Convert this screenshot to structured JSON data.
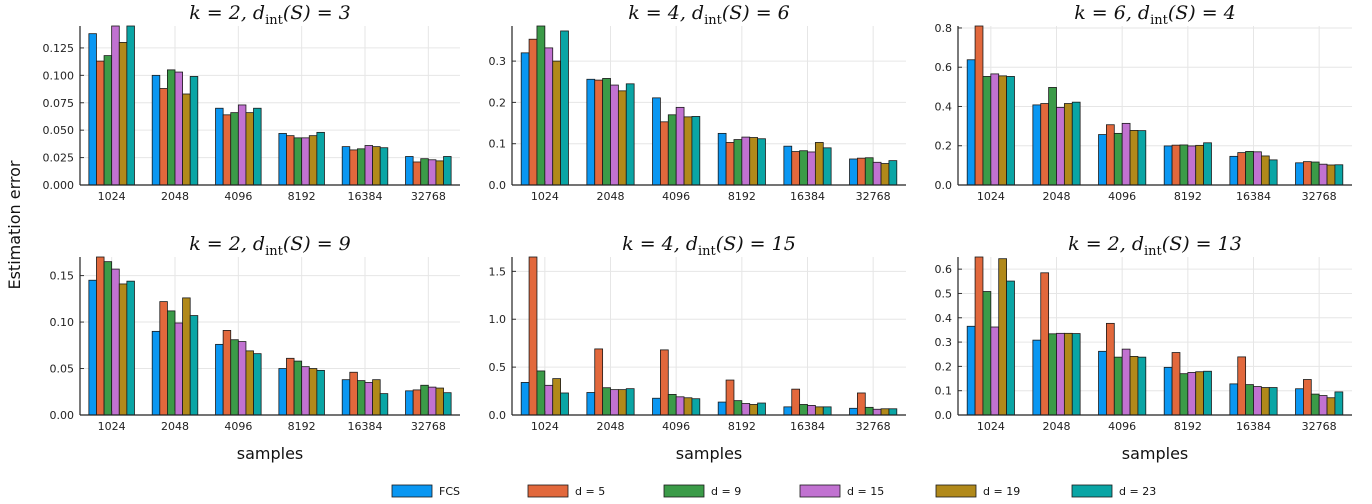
{
  "chart_data": {
    "type": "bar",
    "ylabel": "Estimation error",
    "xlabel": "samples",
    "series_names": [
      "FCS",
      "d = 5",
      "d = 9",
      "d = 15",
      "d = 19",
      "d = 23"
    ],
    "colors": [
      "#0a97f2",
      "#e2683c",
      "#3b9b48",
      "#c172d1",
      "#b1891a",
      "#0aa5a5"
    ],
    "grid": true,
    "legend_position": "bottom",
    "panels": [
      {
        "title": "k = 2, d_int(S) = 3",
        "categories": [
          "1024",
          "2048",
          "4096",
          "8192",
          "16384",
          "32768"
        ],
        "ylim": [
          0,
          0.145
        ],
        "yticks": [
          0.0,
          0.025,
          0.05,
          0.075,
          0.1,
          0.125
        ],
        "ytick_labels": [
          "0.000",
          "0.025",
          "0.050",
          "0.075",
          "0.100",
          "0.125"
        ],
        "values": [
          [
            0.138,
            0.113,
            0.118,
            0.146,
            0.13,
            0.146
          ],
          [
            0.1,
            0.088,
            0.105,
            0.103,
            0.083,
            0.099
          ],
          [
            0.07,
            0.064,
            0.066,
            0.073,
            0.066,
            0.07
          ],
          [
            0.047,
            0.045,
            0.043,
            0.043,
            0.045,
            0.048
          ],
          [
            0.035,
            0.032,
            0.033,
            0.036,
            0.035,
            0.034
          ],
          [
            0.026,
            0.021,
            0.024,
            0.023,
            0.022,
            0.026
          ]
        ]
      },
      {
        "title": "k = 4, d_int(S) = 6",
        "categories": [
          "1024",
          "2048",
          "4096",
          "8192",
          "16384",
          "32768"
        ],
        "ylim": [
          0,
          0.385
        ],
        "yticks": [
          0.0,
          0.1,
          0.2,
          0.3
        ],
        "ytick_labels": [
          "0.0",
          "0.1",
          "0.2",
          "0.3"
        ],
        "values": [
          [
            0.32,
            0.353,
            0.385,
            0.332,
            0.3,
            0.373
          ],
          [
            0.256,
            0.254,
            0.258,
            0.242,
            0.228,
            0.245
          ],
          [
            0.211,
            0.153,
            0.17,
            0.188,
            0.165,
            0.166
          ],
          [
            0.125,
            0.103,
            0.11,
            0.116,
            0.115,
            0.112
          ],
          [
            0.094,
            0.081,
            0.083,
            0.08,
            0.103,
            0.09
          ],
          [
            0.063,
            0.065,
            0.066,
            0.055,
            0.052,
            0.059
          ]
        ]
      },
      {
        "title": "k = 6, d_int(S) = 4",
        "categories": [
          "1024",
          "2048",
          "4096",
          "8192",
          "16384",
          "32768"
        ],
        "ylim": [
          0,
          0.81
        ],
        "yticks": [
          0.0,
          0.2,
          0.4,
          0.6,
          0.8
        ],
        "ytick_labels": [
          "0.0",
          "0.2",
          "0.4",
          "0.6",
          "0.8"
        ],
        "values": [
          [
            0.638,
            0.816,
            0.553,
            0.566,
            0.556,
            0.553
          ],
          [
            0.408,
            0.415,
            0.497,
            0.395,
            0.415,
            0.422
          ],
          [
            0.257,
            0.307,
            0.263,
            0.314,
            0.278,
            0.277
          ],
          [
            0.199,
            0.203,
            0.204,
            0.199,
            0.202,
            0.215
          ],
          [
            0.146,
            0.165,
            0.171,
            0.169,
            0.148,
            0.128
          ],
          [
            0.113,
            0.119,
            0.117,
            0.106,
            0.102,
            0.103
          ]
        ]
      },
      {
        "title": "k = 2, d_int(S) = 9",
        "categories": [
          "1024",
          "2048",
          "4096",
          "8192",
          "16384",
          "32768"
        ],
        "ylim": [
          0,
          0.17
        ],
        "yticks": [
          0.0,
          0.05,
          0.1,
          0.15
        ],
        "ytick_labels": [
          "0.00",
          "0.05",
          "0.10",
          "0.15"
        ],
        "values": [
          [
            0.145,
            0.17,
            0.165,
            0.157,
            0.141,
            0.144
          ],
          [
            0.09,
            0.122,
            0.112,
            0.099,
            0.126,
            0.107
          ],
          [
            0.076,
            0.091,
            0.081,
            0.079,
            0.069,
            0.066
          ],
          [
            0.05,
            0.061,
            0.058,
            0.052,
            0.05,
            0.048
          ],
          [
            0.038,
            0.046,
            0.037,
            0.035,
            0.038,
            0.023
          ],
          [
            0.026,
            0.027,
            0.032,
            0.03,
            0.029,
            0.024
          ]
        ]
      },
      {
        "title": "k = 4, d_int(S) = 15",
        "categories": [
          "1024",
          "2048",
          "4096",
          "8192",
          "16384",
          "32768"
        ],
        "ylim": [
          0,
          1.65
        ],
        "yticks": [
          0.0,
          0.5,
          1.0,
          1.5
        ],
        "ytick_labels": [
          "0.0",
          "0.5",
          "1.0",
          "1.5"
        ],
        "values": [
          [
            0.34,
            1.65,
            0.46,
            0.31,
            0.38,
            0.23
          ],
          [
            0.235,
            0.69,
            0.285,
            0.265,
            0.265,
            0.275
          ],
          [
            0.175,
            0.68,
            0.215,
            0.19,
            0.18,
            0.17
          ],
          [
            0.135,
            0.365,
            0.15,
            0.12,
            0.11,
            0.125
          ],
          [
            0.085,
            0.27,
            0.11,
            0.1,
            0.085,
            0.085
          ],
          [
            0.07,
            0.23,
            0.08,
            0.06,
            0.065,
            0.065
          ]
        ]
      },
      {
        "title": "k = 2, d_int(S) = 13",
        "categories": [
          "1024",
          "2048",
          "4096",
          "8192",
          "16384",
          "32768"
        ],
        "ylim": [
          0,
          0.65
        ],
        "yticks": [
          0.0,
          0.1,
          0.2,
          0.3,
          0.4,
          0.5,
          0.6
        ],
        "ytick_labels": [
          "0.0",
          "0.1",
          "0.2",
          "0.3",
          "0.4",
          "0.5",
          "0.6"
        ],
        "values": [
          [
            0.365,
            0.652,
            0.508,
            0.362,
            0.643,
            0.551
          ],
          [
            0.308,
            0.585,
            0.334,
            0.336,
            0.336,
            0.335
          ],
          [
            0.262,
            0.377,
            0.238,
            0.271,
            0.241,
            0.238
          ],
          [
            0.196,
            0.257,
            0.17,
            0.175,
            0.178,
            0.18
          ],
          [
            0.128,
            0.239,
            0.125,
            0.117,
            0.113,
            0.113
          ],
          [
            0.108,
            0.146,
            0.086,
            0.08,
            0.071,
            0.095
          ]
        ]
      }
    ]
  }
}
